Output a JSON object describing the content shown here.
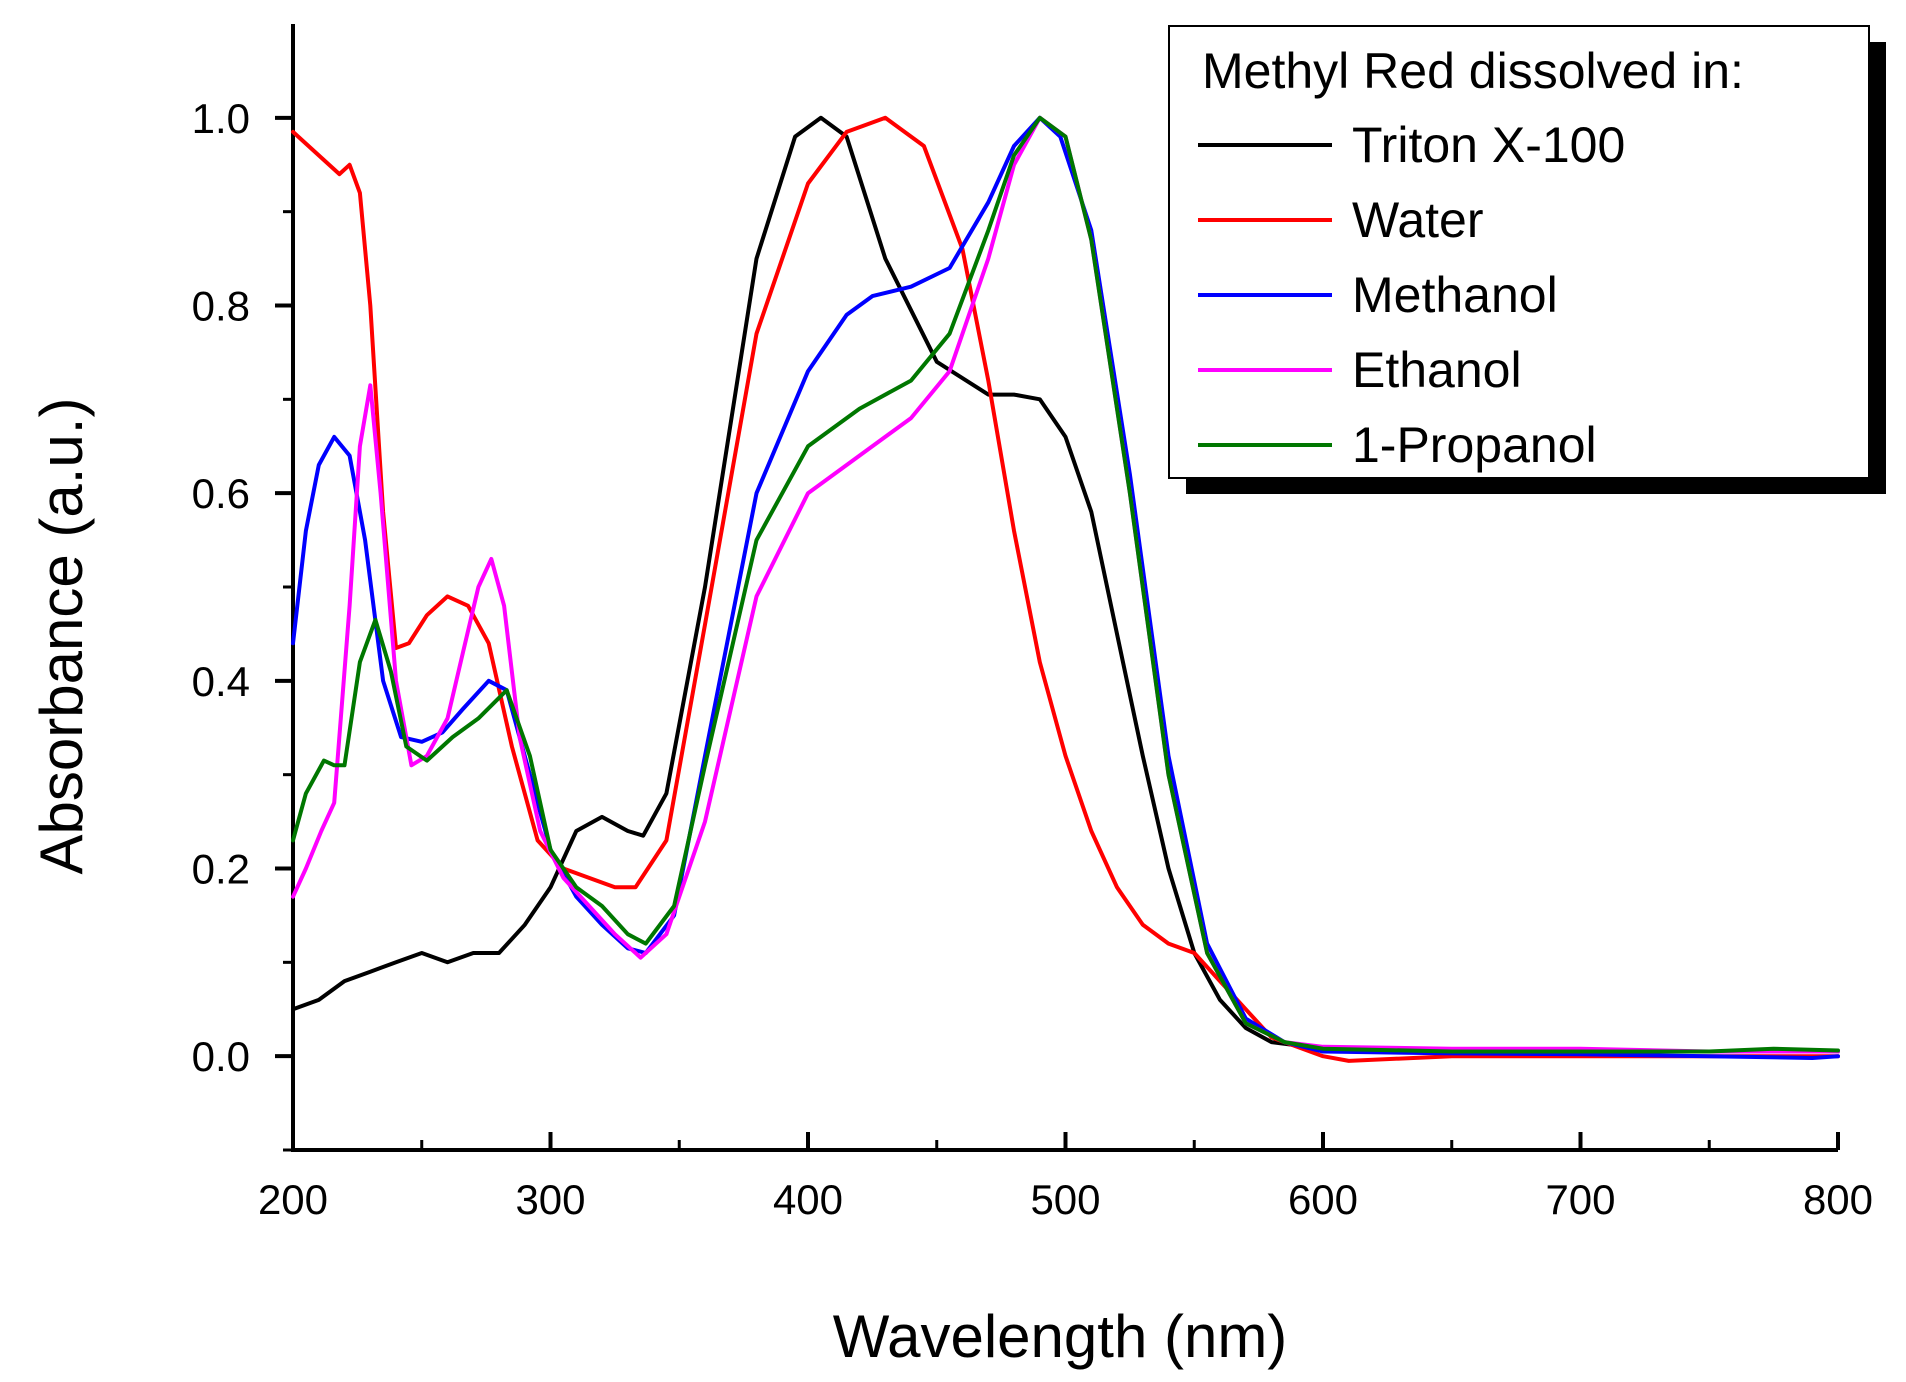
{
  "chart_data": {
    "type": "line",
    "title": "",
    "xlabel": "Wavelength (nm)",
    "ylabel": "Absorbance (a.u.)",
    "xlim": [
      200,
      800
    ],
    "ylim": [
      -0.1,
      1.1
    ],
    "x_ticks": [
      200,
      300,
      400,
      500,
      600,
      700,
      800
    ],
    "x_tick_labels": [
      "200",
      "300",
      "400",
      "500",
      "600",
      "700",
      "800"
    ],
    "y_ticks": [
      0.0,
      0.2,
      0.4,
      0.6,
      0.8,
      1.0
    ],
    "y_tick_labels": [
      "0.0",
      "0.2",
      "0.4",
      "0.6",
      "0.8",
      "1.0"
    ],
    "grid": false,
    "legend": {
      "title": "Methyl Red dissolved in:",
      "placement": "top-right"
    },
    "series": [
      {
        "name": "Triton X-100",
        "color": "#000000",
        "points": [
          [
            200,
            0.05
          ],
          [
            210,
            0.06
          ],
          [
            220,
            0.08
          ],
          [
            230,
            0.09
          ],
          [
            240,
            0.1
          ],
          [
            250,
            0.11
          ],
          [
            260,
            0.1
          ],
          [
            270,
            0.11
          ],
          [
            280,
            0.11
          ],
          [
            290,
            0.14
          ],
          [
            300,
            0.18
          ],
          [
            310,
            0.24
          ],
          [
            320,
            0.255
          ],
          [
            330,
            0.24
          ],
          [
            336,
            0.235
          ],
          [
            345,
            0.28
          ],
          [
            360,
            0.5
          ],
          [
            380,
            0.85
          ],
          [
            395,
            0.98
          ],
          [
            405,
            1.0
          ],
          [
            415,
            0.98
          ],
          [
            430,
            0.85
          ],
          [
            450,
            0.74
          ],
          [
            470,
            0.705
          ],
          [
            480,
            0.705
          ],
          [
            490,
            0.7
          ],
          [
            500,
            0.66
          ],
          [
            510,
            0.58
          ],
          [
            520,
            0.45
          ],
          [
            530,
            0.32
          ],
          [
            540,
            0.2
          ],
          [
            550,
            0.11
          ],
          [
            560,
            0.06
          ],
          [
            570,
            0.03
          ],
          [
            580,
            0.015
          ],
          [
            600,
            0.008
          ],
          [
            650,
            0.005
          ],
          [
            700,
            0.005
          ],
          [
            750,
            0.005
          ],
          [
            800,
            0.005
          ]
        ]
      },
      {
        "name": "Water",
        "color": "#ff0000",
        "points": [
          [
            200,
            0.985
          ],
          [
            210,
            0.96
          ],
          [
            218,
            0.94
          ],
          [
            222,
            0.95
          ],
          [
            226,
            0.92
          ],
          [
            230,
            0.8
          ],
          [
            235,
            0.58
          ],
          [
            240,
            0.435
          ],
          [
            245,
            0.44
          ],
          [
            252,
            0.47
          ],
          [
            260,
            0.49
          ],
          [
            268,
            0.48
          ],
          [
            276,
            0.44
          ],
          [
            285,
            0.33
          ],
          [
            295,
            0.23
          ],
          [
            305,
            0.2
          ],
          [
            315,
            0.19
          ],
          [
            325,
            0.18
          ],
          [
            333,
            0.18
          ],
          [
            345,
            0.23
          ],
          [
            360,
            0.46
          ],
          [
            380,
            0.77
          ],
          [
            400,
            0.93
          ],
          [
            415,
            0.985
          ],
          [
            430,
            1.0
          ],
          [
            445,
            0.97
          ],
          [
            460,
            0.86
          ],
          [
            470,
            0.72
          ],
          [
            480,
            0.56
          ],
          [
            490,
            0.42
          ],
          [
            500,
            0.32
          ],
          [
            510,
            0.24
          ],
          [
            520,
            0.18
          ],
          [
            530,
            0.14
          ],
          [
            540,
            0.12
          ],
          [
            550,
            0.11
          ],
          [
            560,
            0.08
          ],
          [
            570,
            0.05
          ],
          [
            580,
            0.02
          ],
          [
            600,
            0.0
          ],
          [
            610,
            -0.005
          ],
          [
            650,
            0.0
          ],
          [
            700,
            0.0
          ],
          [
            750,
            0.0
          ],
          [
            800,
            0.0
          ]
        ]
      },
      {
        "name": "Methanol",
        "color": "#0000ff",
        "points": [
          [
            200,
            0.44
          ],
          [
            205,
            0.56
          ],
          [
            210,
            0.63
          ],
          [
            216,
            0.66
          ],
          [
            222,
            0.64
          ],
          [
            228,
            0.55
          ],
          [
            235,
            0.4
          ],
          [
            242,
            0.34
          ],
          [
            250,
            0.335
          ],
          [
            258,
            0.345
          ],
          [
            266,
            0.37
          ],
          [
            276,
            0.4
          ],
          [
            283,
            0.39
          ],
          [
            292,
            0.3
          ],
          [
            300,
            0.22
          ],
          [
            310,
            0.17
          ],
          [
            320,
            0.14
          ],
          [
            330,
            0.115
          ],
          [
            337,
            0.11
          ],
          [
            348,
            0.15
          ],
          [
            360,
            0.32
          ],
          [
            380,
            0.6
          ],
          [
            400,
            0.73
          ],
          [
            415,
            0.79
          ],
          [
            425,
            0.81
          ],
          [
            440,
            0.82
          ],
          [
            455,
            0.84
          ],
          [
            470,
            0.91
          ],
          [
            480,
            0.97
          ],
          [
            490,
            1.0
          ],
          [
            498,
            0.98
          ],
          [
            510,
            0.88
          ],
          [
            525,
            0.62
          ],
          [
            540,
            0.32
          ],
          [
            555,
            0.12
          ],
          [
            570,
            0.04
          ],
          [
            585,
            0.015
          ],
          [
            600,
            0.005
          ],
          [
            650,
            0.003
          ],
          [
            700,
            0.002
          ],
          [
            750,
            0.0
          ],
          [
            790,
            -0.002
          ],
          [
            800,
            0.0
          ]
        ]
      },
      {
        "name": "Ethanol",
        "color": "#ff00ff",
        "points": [
          [
            200,
            0.17
          ],
          [
            205,
            0.2
          ],
          [
            211,
            0.24
          ],
          [
            216,
            0.27
          ],
          [
            222,
            0.48
          ],
          [
            226,
            0.65
          ],
          [
            230,
            0.715
          ],
          [
            234,
            0.6
          ],
          [
            240,
            0.4
          ],
          [
            246,
            0.31
          ],
          [
            252,
            0.32
          ],
          [
            260,
            0.36
          ],
          [
            266,
            0.43
          ],
          [
            272,
            0.5
          ],
          [
            277,
            0.53
          ],
          [
            282,
            0.48
          ],
          [
            288,
            0.34
          ],
          [
            296,
            0.24
          ],
          [
            305,
            0.19
          ],
          [
            315,
            0.16
          ],
          [
            325,
            0.13
          ],
          [
            335,
            0.105
          ],
          [
            345,
            0.13
          ],
          [
            360,
            0.25
          ],
          [
            380,
            0.49
          ],
          [
            400,
            0.6
          ],
          [
            420,
            0.64
          ],
          [
            440,
            0.68
          ],
          [
            455,
            0.73
          ],
          [
            470,
            0.85
          ],
          [
            480,
            0.95
          ],
          [
            490,
            1.0
          ],
          [
            500,
            0.98
          ],
          [
            510,
            0.87
          ],
          [
            525,
            0.6
          ],
          [
            540,
            0.3
          ],
          [
            555,
            0.11
          ],
          [
            570,
            0.035
          ],
          [
            585,
            0.015
          ],
          [
            600,
            0.01
          ],
          [
            650,
            0.008
          ],
          [
            700,
            0.008
          ],
          [
            750,
            0.005
          ],
          [
            800,
            0.005
          ]
        ]
      },
      {
        "name": "1-Propanol",
        "color": "#007700",
        "points": [
          [
            200,
            0.23
          ],
          [
            205,
            0.28
          ],
          [
            212,
            0.315
          ],
          [
            216,
            0.31
          ],
          [
            220,
            0.31
          ],
          [
            226,
            0.42
          ],
          [
            232,
            0.465
          ],
          [
            238,
            0.41
          ],
          [
            244,
            0.33
          ],
          [
            252,
            0.315
          ],
          [
            262,
            0.34
          ],
          [
            272,
            0.36
          ],
          [
            283,
            0.39
          ],
          [
            292,
            0.32
          ],
          [
            300,
            0.22
          ],
          [
            310,
            0.18
          ],
          [
            320,
            0.16
          ],
          [
            330,
            0.13
          ],
          [
            337,
            0.12
          ],
          [
            348,
            0.16
          ],
          [
            360,
            0.31
          ],
          [
            380,
            0.55
          ],
          [
            400,
            0.65
          ],
          [
            420,
            0.69
          ],
          [
            440,
            0.72
          ],
          [
            455,
            0.77
          ],
          [
            470,
            0.88
          ],
          [
            480,
            0.96
          ],
          [
            490,
            1.0
          ],
          [
            500,
            0.98
          ],
          [
            510,
            0.87
          ],
          [
            525,
            0.6
          ],
          [
            540,
            0.3
          ],
          [
            555,
            0.11
          ],
          [
            570,
            0.035
          ],
          [
            585,
            0.015
          ],
          [
            600,
            0.008
          ],
          [
            650,
            0.005
          ],
          [
            700,
            0.005
          ],
          [
            750,
            0.005
          ],
          [
            775,
            0.008
          ],
          [
            800,
            0.006
          ]
        ]
      }
    ]
  }
}
